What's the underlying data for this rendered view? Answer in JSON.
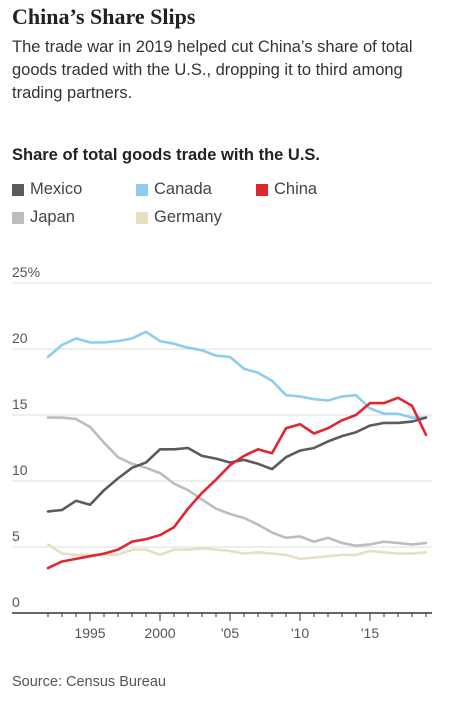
{
  "header": {
    "title": "China’s Share Slips",
    "subtitle": "The trade war in 2019 helped cut China’s share of total goods traded with the U.S., dropping it to third among trading partners."
  },
  "footer": {
    "source": "Source: Census Bureau"
  },
  "colors": {
    "Mexico": "#5b5b5b",
    "Canada": "#8ecdf0",
    "China": "#e0262f",
    "Japan": "#bdbdbd",
    "Germany": "#e6dfc4",
    "grid": "#dddddd",
    "axis": "#333333"
  },
  "chart_data": {
    "type": "line",
    "title": "Share of total goods trade with the U.S.",
    "xlabel": "",
    "ylabel": "",
    "xlim": [
      1992,
      2019
    ],
    "ylim": [
      0,
      25
    ],
    "grid": true,
    "legend": "top-left",
    "y_ticks": [
      {
        "value": 25,
        "label": "25%"
      },
      {
        "value": 20,
        "label": "20"
      },
      {
        "value": 15,
        "label": "15"
      },
      {
        "value": 10,
        "label": "10"
      },
      {
        "value": 5,
        "label": "5"
      },
      {
        "value": 0,
        "label": "0"
      }
    ],
    "x_ticks": [
      {
        "value": 1995,
        "label": "1995"
      },
      {
        "value": 2000,
        "label": "2000"
      },
      {
        "value": 2005,
        "label": "'05"
      },
      {
        "value": 2010,
        "label": "'10"
      },
      {
        "value": 2015,
        "label": "'15"
      }
    ],
    "x": [
      1992,
      1993,
      1994,
      1995,
      1996,
      1997,
      1998,
      1999,
      2000,
      2001,
      2002,
      2003,
      2004,
      2005,
      2006,
      2007,
      2008,
      2009,
      2010,
      2011,
      2012,
      2013,
      2014,
      2015,
      2016,
      2017,
      2018,
      2019
    ],
    "series": [
      {
        "name": "Mexico",
        "values": [
          7.7,
          7.8,
          8.5,
          8.2,
          9.3,
          10.2,
          11.0,
          11.4,
          12.4,
          12.4,
          12.5,
          11.9,
          11.7,
          11.4,
          11.6,
          11.3,
          10.9,
          11.8,
          12.3,
          12.5,
          13.0,
          13.4,
          13.7,
          14.2,
          14.4,
          14.4,
          14.5,
          14.8
        ]
      },
      {
        "name": "Canada",
        "values": [
          19.4,
          20.3,
          20.8,
          20.5,
          20.5,
          20.6,
          20.8,
          21.3,
          20.6,
          20.4,
          20.1,
          19.9,
          19.5,
          19.4,
          18.5,
          18.2,
          17.6,
          16.5,
          16.4,
          16.2,
          16.1,
          16.4,
          16.5,
          15.5,
          15.1,
          15.1,
          14.8,
          14.8
        ]
      },
      {
        "name": "China",
        "values": [
          3.4,
          3.9,
          4.1,
          4.3,
          4.5,
          4.8,
          5.4,
          5.6,
          5.9,
          6.5,
          7.9,
          9.1,
          10.1,
          11.2,
          11.9,
          12.4,
          12.1,
          14.0,
          14.3,
          13.6,
          14.0,
          14.6,
          15.0,
          15.9,
          15.9,
          16.3,
          15.7,
          13.5
        ]
      },
      {
        "name": "Japan",
        "values": [
          14.8,
          14.8,
          14.7,
          14.1,
          12.9,
          11.8,
          11.3,
          11.0,
          10.6,
          9.8,
          9.3,
          8.6,
          7.9,
          7.5,
          7.2,
          6.7,
          6.1,
          5.7,
          5.8,
          5.4,
          5.7,
          5.3,
          5.1,
          5.2,
          5.4,
          5.3,
          5.2,
          5.3
        ]
      },
      {
        "name": "Germany",
        "values": [
          5.2,
          4.5,
          4.4,
          4.4,
          4.4,
          4.4,
          4.8,
          4.8,
          4.4,
          4.8,
          4.8,
          4.9,
          4.8,
          4.7,
          4.5,
          4.6,
          4.5,
          4.4,
          4.1,
          4.2,
          4.3,
          4.4,
          4.4,
          4.7,
          4.6,
          4.5,
          4.5,
          4.6
        ]
      }
    ],
    "legend_order": [
      "Mexico",
      "Canada",
      "China",
      "Japan",
      "Germany"
    ]
  }
}
